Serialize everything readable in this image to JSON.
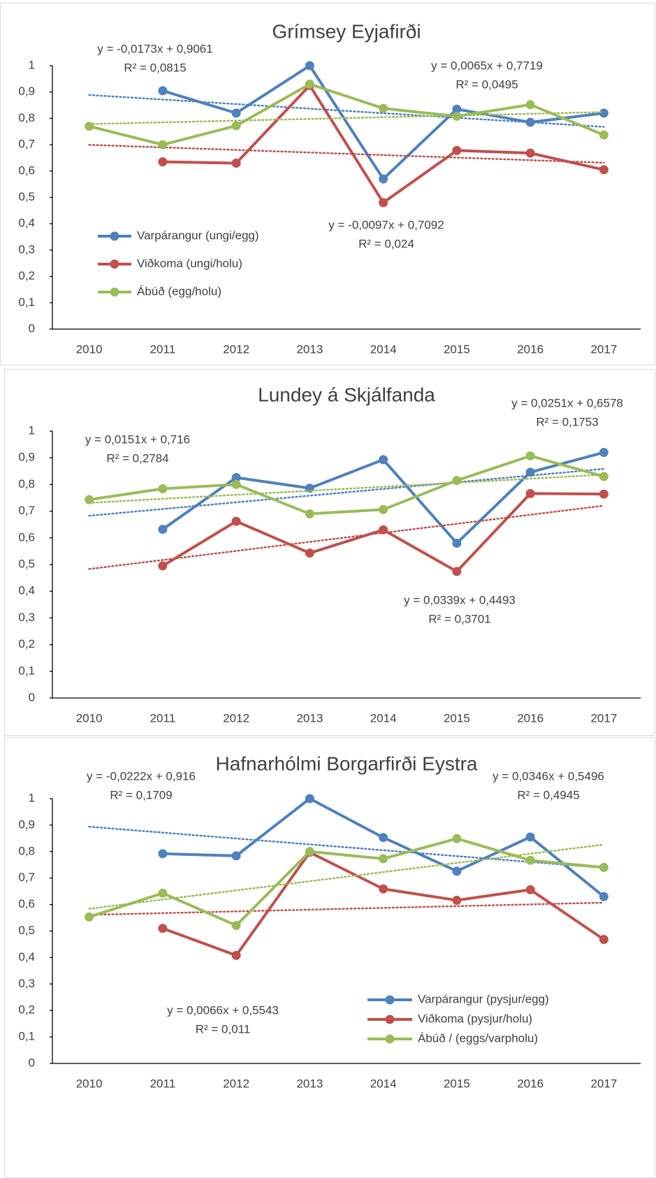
{
  "chart_data": [
    {
      "type": "line",
      "title": "Grímsey Eyjafirði",
      "categories": [
        "2010",
        "2011",
        "2012",
        "2013",
        "2014",
        "2015",
        "2016",
        "2017"
      ],
      "ylim": [
        0,
        1
      ],
      "yticks": [
        0,
        {
          "value": 0.1,
          "label": "0,1"
        },
        {
          "value": 0.2,
          "label": "0,2"
        },
        {
          "value": 0.3,
          "label": "0,3"
        },
        {
          "value": 0.4,
          "label": "0,4"
        },
        {
          "value": 0.5,
          "label": "0,5"
        },
        {
          "value": 0.6,
          "label": "0,6"
        },
        {
          "value": 0.7,
          "label": "0,7"
        },
        {
          "value": 0.8,
          "label": "0,8"
        },
        {
          "value": 0.9,
          "label": "0,9"
        },
        1
      ],
      "legend": "left",
      "series": [
        {
          "name": "Varpárangur (ungi/egg)",
          "color": "#4f81bd",
          "values": [
            null,
            0.905,
            0.82,
            1.0,
            0.57,
            0.835,
            0.785,
            0.82
          ],
          "trend": {
            "slope": -0.0173,
            "intercept": 0.9061,
            "equation": "y = -0,0173x + 0,9061",
            "r2": "R² = 0,0815"
          }
        },
        {
          "name": "Viðkoma (ungi/holu)",
          "color": "#c0504d",
          "values": [
            null,
            0.635,
            0.63,
            0.925,
            0.48,
            0.678,
            0.668,
            0.605
          ],
          "trend": {
            "slope": -0.0097,
            "intercept": 0.7092,
            "equation": "y = -0,0097x + 0,7092",
            "r2": "R² = 0,024"
          }
        },
        {
          "name": "Ábúð (egg/holu)",
          "color": "#9bbb59",
          "values": [
            0.77,
            0.7,
            0.772,
            0.93,
            0.838,
            0.808,
            0.852,
            0.737
          ],
          "trend": {
            "slope": 0.0065,
            "intercept": 0.7719,
            "equation": "y = 0,0065x + 0,7719",
            "r2": "R² = 0,0495"
          }
        }
      ]
    },
    {
      "type": "line",
      "title": "Lundey á Skjálfanda",
      "categories": [
        "2010",
        "2011",
        "2012",
        "2013",
        "2014",
        "2015",
        "2016",
        "2017"
      ],
      "ylim": [
        0,
        1
      ],
      "yticks": [
        0,
        {
          "value": 0.1,
          "label": "0,1"
        },
        {
          "value": 0.2,
          "label": "0,2"
        },
        {
          "value": 0.3,
          "label": "0,3"
        },
        {
          "value": 0.4,
          "label": "0,4"
        },
        {
          "value": 0.5,
          "label": "0,5"
        },
        {
          "value": 0.6,
          "label": "0,6"
        },
        {
          "value": 0.7,
          "label": "0,7"
        },
        {
          "value": 0.8,
          "label": "0,8"
        },
        {
          "value": 0.9,
          "label": "0,9"
        },
        1
      ],
      "series": [
        {
          "color": "#4f81bd",
          "values": [
            null,
            0.632,
            0.826,
            0.786,
            0.893,
            0.58,
            0.846,
            0.92
          ],
          "trend": {
            "slope": 0.0251,
            "intercept": 0.6578,
            "equation": "y = 0,0251x + 0,6578",
            "r2": "R² = 0,1753"
          }
        },
        {
          "color": "#c0504d",
          "values": [
            null,
            0.495,
            0.662,
            0.543,
            0.63,
            0.474,
            0.766,
            0.764
          ],
          "trend": {
            "slope": 0.0339,
            "intercept": 0.4493,
            "equation": "y = 0,0339x + 0,4493",
            "r2": "R² = 0,3701"
          }
        },
        {
          "color": "#9bbb59",
          "values": [
            0.743,
            0.784,
            0.8,
            0.69,
            0.706,
            0.815,
            0.907,
            0.83
          ],
          "trend": {
            "slope": 0.0151,
            "intercept": 0.716,
            "equation": "y = 0,0151x + 0,716",
            "r2": "R² = 0,2784"
          }
        }
      ]
    },
    {
      "type": "line",
      "title": "Hafnarhólmi Borgarfirði Eystra",
      "categories": [
        "2010",
        "2011",
        "2012",
        "2013",
        "2014",
        "2015",
        "2016",
        "2017"
      ],
      "ylim": [
        0,
        1
      ],
      "yticks": [
        0,
        {
          "value": 0.1,
          "label": "0,1"
        },
        {
          "value": 0.2,
          "label": "0,2"
        },
        {
          "value": 0.3,
          "label": "0,3"
        },
        {
          "value": 0.4,
          "label": "0,4"
        },
        {
          "value": 0.5,
          "label": "0,5"
        },
        {
          "value": 0.6,
          "label": "0,6"
        },
        {
          "value": 0.7,
          "label": "0,7"
        },
        {
          "value": 0.8,
          "label": "0,8"
        },
        {
          "value": 0.9,
          "label": "0,9"
        },
        1
      ],
      "legend": "lower right",
      "series": [
        {
          "name": "Varpárangur (pysjur/egg)",
          "color": "#4f81bd",
          "values": [
            null,
            0.792,
            0.784,
            1.0,
            0.853,
            0.726,
            0.855,
            0.63
          ],
          "trend": {
            "slope": -0.0222,
            "intercept": 0.916,
            "equation": "y = -0,0222x + 0,916",
            "r2": "R² = 0,1709"
          }
        },
        {
          "name": "Viðkoma (pysjur/holu)",
          "color": "#c0504d",
          "values": [
            null,
            0.51,
            0.408,
            0.797,
            0.659,
            0.616,
            0.656,
            0.468
          ],
          "trend": {
            "slope": 0.0066,
            "intercept": 0.5543,
            "equation": "y = 0,0066x + 0,5543",
            "r2": "R² = 0,011"
          }
        },
        {
          "name": "Ábúð / (eggs/varpholu)",
          "color": "#9bbb59",
          "values": [
            0.553,
            0.643,
            0.521,
            0.8,
            0.773,
            0.849,
            0.767,
            0.74
          ],
          "trend": {
            "slope": 0.0346,
            "intercept": 0.5496,
            "equation": "y = 0,0346x + 0,5496",
            "r2": "R² = 0,4945"
          }
        }
      ]
    }
  ]
}
